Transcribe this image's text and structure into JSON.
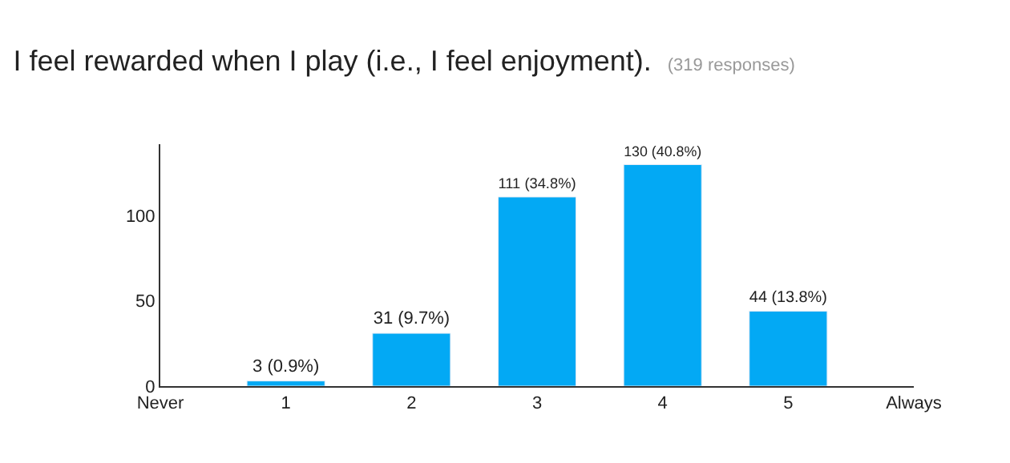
{
  "chart_data": {
    "type": "bar",
    "title": "I feel rewarded when I play (i.e., I feel enjoyment).",
    "subtitle": "(319 responses)",
    "x": [
      1,
      2,
      3,
      4,
      5
    ],
    "values": [
      3,
      31,
      111,
      130,
      44
    ],
    "color": "#03a9f4",
    "value_labels": [
      "3 (0.9%)",
      "31 (9.7%)",
      "111 (34.8%)",
      "130 (40.8%)",
      "44 (13.8%)"
    ],
    "xlim": [
      0,
      6
    ],
    "xticks": [
      {
        "value": 0,
        "label": "Never"
      },
      1,
      2,
      3,
      4,
      5,
      {
        "value": 6,
        "label": "Always"
      }
    ],
    "ylim": [
      0,
      142
    ],
    "yticks": [
      0,
      50,
      100
    ]
  }
}
